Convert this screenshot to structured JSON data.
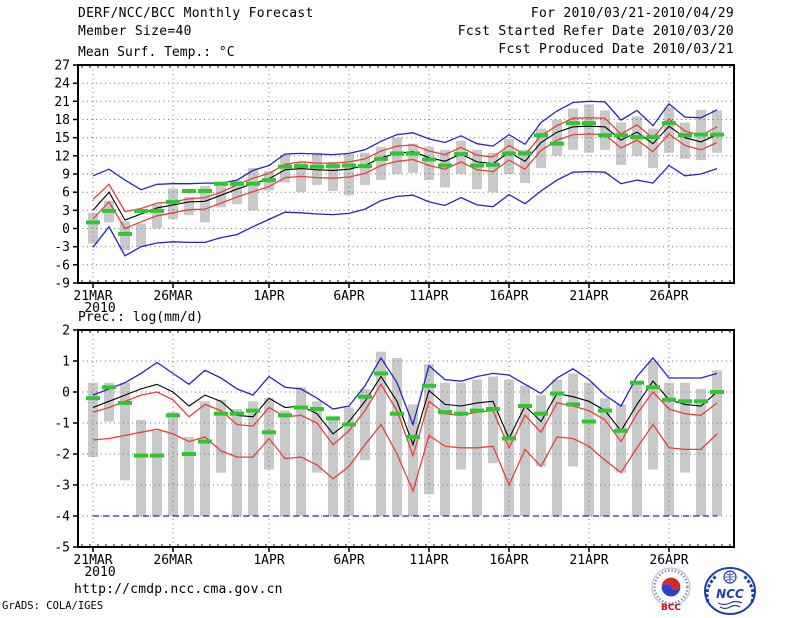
{
  "figure": {
    "header_left": [
      "DERF/NCC/BCC Monthly Forecast",
      "Member Size=40"
    ],
    "header_right": [
      "For 2010/03/21-2010/04/29",
      "Fcst Started Refer Date 2010/03/20",
      "Fcst Produced Date 2010/03/21"
    ],
    "footer_url": "http://cmdp.ncc.cma.gov.cn",
    "credit": "GrADS: COLA/IGES",
    "logos": {
      "bcc": "BCC",
      "ncc": "NCC"
    }
  },
  "colors": {
    "blue": "#2424c8",
    "red": "#f03c3c",
    "black": "#000000",
    "green": "#2ec82e",
    "bar": "#c9c9c9",
    "grid": "#707070"
  },
  "chart_data": [
    {
      "type": "line",
      "title": "Mean Surf. Temp.: °C",
      "ylim": [
        -9,
        27
      ],
      "ystep": 3,
      "yticks": [
        "27",
        "24",
        "21",
        "18",
        "15",
        "12",
        "9",
        "6",
        "3",
        "0",
        "-3",
        "-6",
        "-9"
      ],
      "xticks": {
        "labels": [
          "21MAR",
          "26MAR",
          "1APR",
          "6APR",
          "11APR",
          "16APR",
          "21APR",
          "26APR"
        ],
        "days": [
          0,
          5,
          11,
          16,
          21,
          26,
          31,
          36
        ],
        "year": "2010"
      },
      "n_days": 40,
      "grid": true,
      "legend_position": "none",
      "series": [
        {
          "name": "ensemble-max",
          "color": "blue",
          "values": [
            8.7,
            9.8,
            8.0,
            6.4,
            7.3,
            7.4,
            7.4,
            7.5,
            7.5,
            8.0,
            9.6,
            10.4,
            12.3,
            12.4,
            12.3,
            12.2,
            12.4,
            13.0,
            14.4,
            15.5,
            15.8,
            14.8,
            14.2,
            15.3,
            14.0,
            13.6,
            15.5,
            13.9,
            17.5,
            19.4,
            20.8,
            21.0,
            20.9,
            17.9,
            19.5,
            17.0,
            20.6,
            18.4,
            18.3,
            19.6
          ]
        },
        {
          "name": "ensemble-upper-quartile",
          "color": "red",
          "values": [
            4.8,
            7.3,
            2.8,
            3.3,
            4.2,
            4.4,
            4.9,
            5.1,
            6.0,
            7.2,
            8.3,
            9.1,
            10.6,
            11.0,
            10.8,
            10.8,
            11.0,
            11.5,
            12.8,
            13.6,
            13.8,
            12.8,
            12.2,
            13.4,
            12.1,
            11.8,
            13.7,
            12.2,
            15.3,
            17.0,
            18.2,
            18.3,
            18.2,
            15.6,
            17.1,
            14.9,
            18.1,
            16.1,
            15.3,
            16.8
          ]
        },
        {
          "name": "ensemble-mean",
          "color": "black",
          "values": [
            3.0,
            6.0,
            1.4,
            2.4,
            3.4,
            3.9,
            4.4,
            4.5,
            5.5,
            6.5,
            7.4,
            8.2,
            9.7,
            9.9,
            9.7,
            9.6,
            9.8,
            10.4,
            11.7,
            12.4,
            12.7,
            11.7,
            11.1,
            12.3,
            11.0,
            10.7,
            12.6,
            11.1,
            14.2,
            15.9,
            16.8,
            16.9,
            16.8,
            14.6,
            15.9,
            14.0,
            16.9,
            15.0,
            14.3,
            15.5
          ]
        },
        {
          "name": "ensemble-lower-quartile",
          "color": "red",
          "values": [
            1.6,
            4.4,
            0.0,
            1.1,
            2.1,
            2.6,
            3.1,
            3.2,
            4.2,
            5.2,
            6.1,
            6.9,
            8.4,
            8.6,
            8.4,
            8.3,
            8.5,
            9.1,
            10.4,
            11.1,
            11.4,
            10.4,
            9.8,
            11.0,
            9.7,
            9.4,
            11.3,
            9.8,
            12.9,
            14.6,
            15.5,
            15.6,
            15.5,
            13.3,
            14.6,
            12.7,
            15.6,
            13.7,
            13.0,
            14.2
          ]
        },
        {
          "name": "ensemble-min",
          "color": "blue",
          "values": [
            -3.1,
            0.3,
            -4.5,
            -3.0,
            -2.4,
            -2.2,
            -2.3,
            -2.3,
            -1.5,
            -1.0,
            0.3,
            1.5,
            2.7,
            2.6,
            2.4,
            2.3,
            2.5,
            3.2,
            4.6,
            5.3,
            5.5,
            4.4,
            3.8,
            5.1,
            3.9,
            3.6,
            5.6,
            4.1,
            6.2,
            8.0,
            9.3,
            9.4,
            9.3,
            7.4,
            8.0,
            7.5,
            10.4,
            8.7,
            9.0,
            9.9
          ]
        }
      ],
      "markers": {
        "name": "green-dash-obs",
        "color": "green",
        "values": [
          1.0,
          2.9,
          -0.9,
          2.9,
          2.9,
          4.4,
          6.2,
          6.2,
          7.4,
          7.4,
          7.4,
          8.0,
          10.2,
          10.3,
          10.2,
          10.3,
          10.4,
          10.3,
          11.5,
          12.4,
          12.4,
          11.4,
          10.4,
          12.3,
          10.4,
          10.5,
          12.4,
          12.4,
          15.4,
          14.0,
          17.4,
          17.4,
          15.4,
          15.4,
          15.1,
          15.1,
          17.4,
          15.4,
          15.5,
          15.5
        ]
      },
      "bars": {
        "name": "ensemble-spread",
        "color": "bar",
        "ranges": [
          [
            -2.5,
            2.6
          ],
          [
            1.0,
            4.6
          ],
          [
            -3.6,
            1.2
          ],
          [
            -3.0,
            0.8
          ],
          [
            0.0,
            4.0
          ],
          [
            1.5,
            6.6
          ],
          [
            2.2,
            5.2
          ],
          [
            1.0,
            7.0
          ],
          [
            3.5,
            7.3
          ],
          [
            4.0,
            8.0
          ],
          [
            3.0,
            10.0
          ],
          [
            6.3,
            9.5
          ],
          [
            7.6,
            12.2
          ],
          [
            6.0,
            11.0
          ],
          [
            7.2,
            12.5
          ],
          [
            6.2,
            11.0
          ],
          [
            5.5,
            12.3
          ],
          [
            7.2,
            12.5
          ],
          [
            8.0,
            13.5
          ],
          [
            9.0,
            15.0
          ],
          [
            9.2,
            14.0
          ],
          [
            8.0,
            13.5
          ],
          [
            6.8,
            13.0
          ],
          [
            9.0,
            14.5
          ],
          [
            6.5,
            13.0
          ],
          [
            6.0,
            12.5
          ],
          [
            9.0,
            14.8
          ],
          [
            7.5,
            13.0
          ],
          [
            10.0,
            16.5
          ],
          [
            12.0,
            18.0
          ],
          [
            13.0,
            19.8
          ],
          [
            12.5,
            20.5
          ],
          [
            13.0,
            19.5
          ],
          [
            10.5,
            17.5
          ],
          [
            12.0,
            18.5
          ],
          [
            10.0,
            16.5
          ],
          [
            12.5,
            20.0
          ],
          [
            11.5,
            17.5
          ],
          [
            11.3,
            19.6
          ],
          [
            12.5,
            19.5
          ]
        ]
      }
    },
    {
      "type": "line",
      "title": "Prec.: log(mm/d)",
      "ylim": [
        -5,
        2
      ],
      "ystep": 1,
      "yticks": [
        "2",
        "1",
        "0",
        "-1",
        "-2",
        "-3",
        "-4",
        "-5"
      ],
      "xticks": {
        "labels": [
          "21MAR",
          "26MAR",
          "1APR",
          "6APR",
          "11APR",
          "16APR",
          "21APR",
          "26APR"
        ],
        "days": [
          0,
          5,
          11,
          16,
          21,
          26,
          31,
          36
        ],
        "year": "2010"
      },
      "n_days": 40,
      "grid": true,
      "legend_position": "none",
      "series": [
        {
          "name": "ensemble-max",
          "color": "blue",
          "values": [
            -0.1,
            0.1,
            0.3,
            0.6,
            0.95,
            0.6,
            0.25,
            0.7,
            0.45,
            0.1,
            -0.1,
            0.5,
            0.15,
            0.1,
            -0.2,
            -0.55,
            -0.45,
            0.2,
            1.1,
            0.3,
            -1.05,
            0.85,
            0.4,
            0.35,
            0.5,
            0.6,
            0.55,
            0.25,
            -0.05,
            0.45,
            0.75,
            0.4,
            -0.1,
            -0.45,
            0.5,
            1.1,
            0.45,
            0.45,
            0.45,
            0.6
          ]
        },
        {
          "name": "ensemble-upper-quartile",
          "color": "red",
          "values": [
            -0.65,
            -0.5,
            -0.3,
            -0.1,
            0.0,
            -0.25,
            -0.8,
            -0.4,
            -0.6,
            -1.05,
            -1.1,
            -0.5,
            -0.8,
            -0.75,
            -1.0,
            -1.7,
            -1.25,
            -0.6,
            0.25,
            -0.6,
            -2.05,
            -0.3,
            -0.7,
            -0.75,
            -0.65,
            -0.6,
            -1.8,
            -0.75,
            -1.3,
            -0.35,
            -0.45,
            -0.6,
            -0.9,
            -1.6,
            -0.7,
            0.0,
            -0.55,
            -0.7,
            -0.75,
            -0.35
          ]
        },
        {
          "name": "ensemble-mean",
          "color": "black",
          "values": [
            -0.5,
            -0.3,
            -0.1,
            0.1,
            0.25,
            0.0,
            -0.45,
            -0.1,
            -0.3,
            -0.75,
            -0.8,
            -0.2,
            -0.5,
            -0.45,
            -0.7,
            -1.35,
            -0.95,
            -0.3,
            0.5,
            -0.3,
            -1.7,
            0.05,
            -0.4,
            -0.45,
            -0.35,
            -0.3,
            -1.5,
            -0.45,
            -0.95,
            -0.05,
            -0.15,
            -0.3,
            -0.6,
            -1.25,
            -0.4,
            0.35,
            -0.25,
            -0.4,
            -0.45,
            0.0
          ]
        },
        {
          "name": "ensemble-lower-quartile",
          "color": "red",
          "values": [
            -1.55,
            -1.5,
            -1.4,
            -1.3,
            -1.2,
            -1.35,
            -1.6,
            -1.45,
            -1.9,
            -2.1,
            -2.1,
            -1.5,
            -2.15,
            -2.1,
            -2.35,
            -2.8,
            -2.4,
            -1.7,
            -1.05,
            -2.0,
            -3.2,
            -1.4,
            -1.75,
            -1.8,
            -1.8,
            -1.75,
            -3.0,
            -1.85,
            -2.4,
            -1.45,
            -1.5,
            -1.75,
            -2.2,
            -2.6,
            -1.8,
            -1.05,
            -1.8,
            -1.85,
            -1.85,
            -1.35
          ]
        },
        {
          "name": "ensemble-min",
          "color": "blue",
          "dashed": true,
          "values": [
            -4.0,
            -4.0,
            -4.0,
            -4.0,
            -4.0,
            -4.0,
            -4.0,
            -4.0,
            -4.0,
            -4.0,
            -4.0,
            -4.0,
            -4.0,
            -4.0,
            -4.0,
            -4.0,
            -4.0,
            -4.0,
            -4.0,
            -4.0,
            -4.0,
            -4.0,
            -4.0,
            -4.0,
            -4.0,
            -4.0,
            -4.0,
            -4.0,
            -4.0,
            -4.0,
            -4.0,
            -4.0,
            -4.0,
            -4.0,
            -4.0,
            -4.0,
            -4.0,
            -4.0,
            -4.0,
            -4.0
          ]
        }
      ],
      "markers": {
        "name": "green-dash-obs",
        "color": "green",
        "values": [
          -0.2,
          0.15,
          -0.35,
          -2.05,
          -2.05,
          -0.75,
          -2.0,
          -1.6,
          -0.7,
          -0.7,
          -0.6,
          -1.3,
          -0.75,
          -0.5,
          -0.55,
          -0.85,
          -1.05,
          -0.15,
          0.6,
          -0.7,
          -1.45,
          0.2,
          -0.65,
          -0.7,
          -0.6,
          -0.55,
          -1.5,
          -0.45,
          -0.7,
          -0.05,
          -0.4,
          -0.95,
          -0.6,
          -1.25,
          0.3,
          0.15,
          -0.25,
          -0.3,
          -0.3,
          0.0
        ]
      },
      "bars": {
        "name": "ensemble-spread",
        "color": "bar",
        "ranges": [
          [
            -2.1,
            0.3
          ],
          [
            -0.95,
            0.3
          ],
          [
            -2.85,
            0.3
          ],
          [
            -4,
            -0.9
          ],
          [
            -4,
            -1.25
          ],
          [
            -4,
            -0.65
          ],
          [
            -4,
            -1.45
          ],
          [
            -4,
            -0.3
          ],
          [
            -2.6,
            -0.25
          ],
          [
            -4,
            -0.55
          ],
          [
            -4,
            -0.3
          ],
          [
            -2.5,
            -0.2
          ],
          [
            -4,
            -0.6
          ],
          [
            -4,
            0.15
          ],
          [
            -2.6,
            -0.3
          ],
          [
            -4,
            -0.8
          ],
          [
            -4,
            -0.5
          ],
          [
            -2.2,
            0.1
          ],
          [
            -4,
            1.3
          ],
          [
            -4,
            1.1
          ],
          [
            -4,
            -0.4
          ],
          [
            -3.3,
            0.9
          ],
          [
            -4,
            0.3
          ],
          [
            -2.5,
            0.3
          ],
          [
            -4,
            0.4
          ],
          [
            -2.3,
            0.5
          ],
          [
            -4,
            0.4
          ],
          [
            -4,
            0.2
          ],
          [
            -2.4,
            -0.1
          ],
          [
            -4,
            0.4
          ],
          [
            -2.4,
            0.6
          ],
          [
            -4,
            0.3
          ],
          [
            -4,
            -0.2
          ],
          [
            -2.6,
            -0.4
          ],
          [
            -4,
            0.3
          ],
          [
            -2.5,
            1.0
          ],
          [
            -4,
            0.3
          ],
          [
            -2.6,
            0.3
          ],
          [
            -4,
            0.1
          ],
          [
            -4,
            0.7
          ]
        ]
      }
    }
  ]
}
